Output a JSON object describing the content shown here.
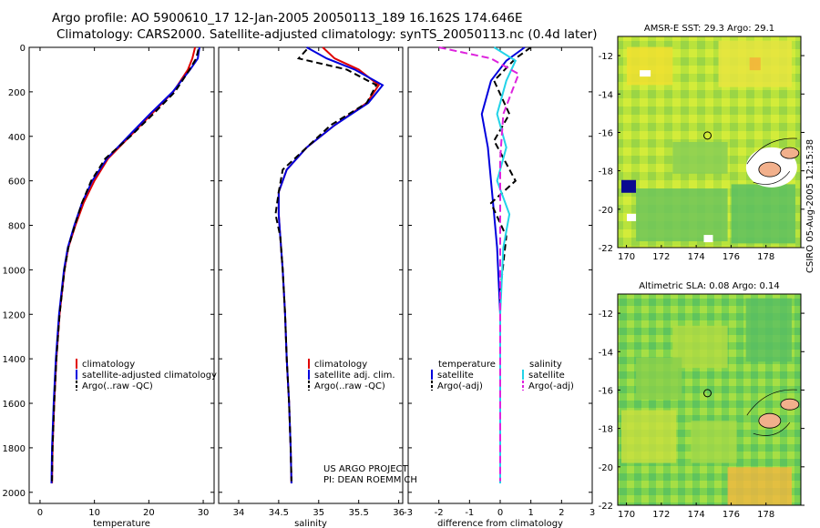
{
  "title_line1": "Argo profile: AO 5900610_17 12-Jan-2005 20050113_189 16.162S 174.646E",
  "title_line2": "Climatology: CARS2000. Satellite-adjusted climatology: synTS_20050113.nc (0.4d later)",
  "side_label": "CSIRO 05-Aug-2005 12:15:38",
  "colors": {
    "climatology": "#e00000",
    "satellite": "#0000dd",
    "argo": "#000000",
    "sat_salinity": "#22d3e8",
    "argo_salinity": "#dd22dd"
  },
  "chart_data": [
    {
      "type": "line",
      "xlabel": "temperature",
      "xlim": [
        -2,
        32
      ],
      "ylim": [
        2050,
        0
      ],
      "xticks": [
        0,
        10,
        20,
        30
      ],
      "yticks": [
        0,
        200,
        400,
        600,
        800,
        1000,
        1200,
        1400,
        1600,
        1800,
        2000
      ],
      "legend": [
        "climatology",
        "satellite-adjusted climatology",
        "Argo(..raw -QC)"
      ],
      "series": [
        {
          "name": "climatology",
          "x": [
            28.5,
            28.0,
            27.2,
            24.5,
            20.5,
            16.5,
            12.5,
            10.0,
            8.0,
            6.5,
            5.2,
            4.5,
            3.6,
            3.0,
            2.6,
            2.3,
            2.2
          ],
          "y": [
            0,
            50,
            100,
            200,
            300,
            400,
            500,
            600,
            700,
            800,
            900,
            1000,
            1200,
            1400,
            1600,
            1800,
            1960
          ]
        },
        {
          "name": "satellite-adjusted climatology",
          "x": [
            29.3,
            29.0,
            27.6,
            24.4,
            20.2,
            16.2,
            12.3,
            9.6,
            7.7,
            6.3,
            5.1,
            4.4,
            3.5,
            2.9,
            2.5,
            2.2,
            2.1
          ],
          "y": [
            0,
            50,
            100,
            200,
            300,
            400,
            500,
            600,
            700,
            800,
            900,
            1000,
            1200,
            1400,
            1600,
            1800,
            1960
          ]
        },
        {
          "name": "Argo(..raw -QC)",
          "x": [
            29.1,
            28.7,
            27.5,
            24.8,
            20.8,
            16.6,
            12.0,
            9.4,
            7.7,
            6.4,
            5.2,
            4.5,
            3.6,
            3.0,
            2.6,
            2.3,
            2.2
          ],
          "y": [
            10,
            50,
            100,
            200,
            300,
            400,
            500,
            600,
            700,
            800,
            900,
            1000,
            1200,
            1400,
            1600,
            1800,
            1950
          ]
        }
      ]
    },
    {
      "type": "line",
      "xlabel": "salinity",
      "xlim": [
        33.75,
        36.05
      ],
      "ylim": [
        2050,
        0
      ],
      "xticks": [
        34,
        34.5,
        35,
        35.5,
        36
      ],
      "yticks": [
        0,
        200,
        400,
        600,
        800,
        1000,
        1200,
        1400,
        1600,
        1800,
        2000
      ],
      "legend": [
        "climatology",
        "satellite adj. clim.",
        "Argo(..raw -QC)"
      ],
      "annotation": [
        "US ARGO PROJECT",
        "PI: DEAN ROEMMICH"
      ],
      "series": [
        {
          "name": "climatology",
          "x": [
            35.05,
            35.2,
            35.5,
            35.75,
            35.6,
            35.2,
            34.85,
            34.6,
            34.5,
            34.5,
            34.52,
            34.55,
            34.58,
            34.6,
            34.63,
            34.65,
            34.66
          ],
          "y": [
            0,
            50,
            100,
            170,
            250,
            350,
            450,
            550,
            650,
            750,
            850,
            1000,
            1200,
            1400,
            1600,
            1800,
            1960
          ]
        },
        {
          "name": "satellite adj. clim.",
          "x": [
            34.85,
            35.1,
            35.45,
            35.8,
            35.62,
            35.2,
            34.85,
            34.6,
            34.5,
            34.5,
            34.52,
            34.55,
            34.58,
            34.6,
            34.63,
            34.65,
            34.66
          ],
          "y": [
            0,
            50,
            100,
            170,
            250,
            350,
            450,
            550,
            650,
            750,
            850,
            1000,
            1200,
            1400,
            1600,
            1800,
            1960
          ]
        },
        {
          "name": "Argo(..raw -QC)",
          "x": [
            34.85,
            34.75,
            35.35,
            35.72,
            35.6,
            35.15,
            34.85,
            34.55,
            34.5,
            34.46,
            34.52,
            34.55,
            34.58,
            34.6,
            34.63,
            34.65,
            34.66
          ],
          "y": [
            10,
            50,
            100,
            170,
            250,
            350,
            450,
            550,
            650,
            750,
            850,
            1000,
            1200,
            1400,
            1600,
            1800,
            1950
          ]
        }
      ]
    },
    {
      "type": "line",
      "xlabel": "difference from climatology",
      "xlim": [
        -3,
        3
      ],
      "ylim": [
        2050,
        0
      ],
      "xticks": [
        -3,
        -2,
        -1,
        0,
        1,
        2,
        3
      ],
      "yticks": [
        0,
        200,
        400,
        600,
        800,
        1000,
        1200,
        1400,
        1600,
        1800,
        2000
      ],
      "legend_left_title": "temperature",
      "legend_left": [
        "satellite",
        "Argo(-adj)"
      ],
      "legend_right_title": "salinity",
      "legend_right": [
        "satellite",
        "Argo(-adj)"
      ],
      "series": [
        {
          "name": "satellite",
          "x": [
            0.8,
            0.2,
            -0.3,
            -0.6,
            -0.4,
            -0.3,
            -0.2,
            -0.1,
            0,
            0,
            0
          ],
          "y": [
            0,
            60,
            150,
            300,
            450,
            600,
            750,
            900,
            1200,
            1600,
            1960
          ]
        },
        {
          "name": "Argo(-adj)",
          "x": [
            1.0,
            0.5,
            -0.2,
            0.3,
            -0.2,
            0.5,
            -0.3,
            0.2,
            0,
            0,
            0
          ],
          "y": [
            0,
            50,
            150,
            300,
            420,
            600,
            700,
            850,
            1100,
            1500,
            1950
          ]
        },
        {
          "name": "satellite",
          "x": [
            -0.2,
            0.5,
            0.2,
            -0.1,
            0.2,
            -0.1,
            0.3,
            0.1,
            0,
            0,
            0
          ],
          "y": [
            0,
            60,
            150,
            300,
            450,
            600,
            750,
            900,
            1200,
            1600,
            1960
          ]
        },
        {
          "name": "Argo(-adj)",
          "x": [
            -2.0,
            -0.3,
            0.6,
            0.1,
            0,
            0,
            0,
            0,
            0,
            0
          ],
          "y": [
            0,
            50,
            120,
            300,
            500,
            700,
            900,
            1200,
            1600,
            1950
          ]
        }
      ]
    }
  ],
  "maps": [
    {
      "title": "AMSR-E SST: 29.3 Argo: 29.1",
      "xticks": [
        "170",
        "172",
        "174",
        "176",
        "178"
      ],
      "yticks": [
        "-12",
        "-14",
        "-16",
        "-18",
        "-20",
        "-22"
      ]
    },
    {
      "title": "Altimetric SLA: 0.08 Argo: 0.14",
      "xticks": [
        "170",
        "172",
        "174",
        "176",
        "178"
      ],
      "yticks": [
        "-12",
        "-14",
        "-16",
        "-18",
        "-20",
        "-22"
      ]
    }
  ]
}
